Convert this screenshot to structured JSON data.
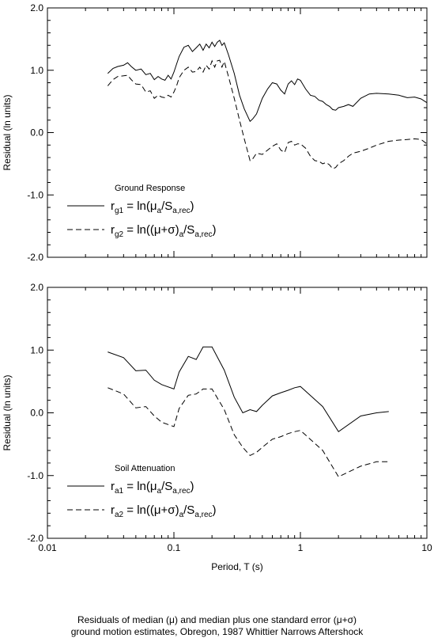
{
  "chart_data": [
    {
      "type": "line",
      "xscale": "log",
      "xlim": [
        0.01,
        10
      ],
      "ylim": [
        -2.0,
        2.0
      ],
      "ylabel": "Residual (ln units)",
      "xlabel": "",
      "x_ticks": [
        0.01,
        0.1,
        1,
        10
      ],
      "x_tick_labels": [
        "",
        "",
        "",
        ""
      ],
      "y_ticks": [
        2.0,
        1.0,
        0.0,
        -1.0,
        -2.0
      ],
      "y_tick_labels": [
        "2.0",
        "1.0",
        "0.0",
        "-1.0",
        "-2.0"
      ],
      "grid": false,
      "legend": {
        "placement": "bottom-left",
        "title": "Ground Response",
        "entries": [
          {
            "main": "r",
            "sub": "g1",
            "mid": " = ln(",
            "greek": "μ",
            "sub2": "a",
            "post": "/S",
            "sub3": "a,rec",
            "end": ")",
            "dash": "solid"
          },
          {
            "main": "r",
            "sub": "g2",
            "mid": " = ln((",
            "greek": "μ+σ",
            "sub2": ")a",
            "post": "/S",
            "sub3": "a,rec",
            "end": ")",
            "dash": "dashed"
          }
        ]
      },
      "series": [
        {
          "dash": "solid",
          "x": [
            0.03,
            0.033,
            0.036,
            0.04,
            0.043,
            0.046,
            0.05,
            0.055,
            0.06,
            0.065,
            0.07,
            0.075,
            0.08,
            0.085,
            0.09,
            0.095,
            0.1,
            0.105,
            0.11,
            0.12,
            0.13,
            0.14,
            0.15,
            0.16,
            0.17,
            0.18,
            0.19,
            0.2,
            0.21,
            0.22,
            0.23,
            0.24,
            0.25,
            0.27,
            0.3,
            0.33,
            0.36,
            0.4,
            0.42,
            0.45,
            0.5,
            0.55,
            0.6,
            0.65,
            0.7,
            0.75,
            0.8,
            0.85,
            0.9,
            0.95,
            1.0,
            1.1,
            1.2,
            1.3,
            1.4,
            1.5,
            1.6,
            1.7,
            1.8,
            1.9,
            2.0,
            2.2,
            2.4,
            2.6,
            3.0,
            3.5,
            4.0,
            5.0,
            6.0,
            7.0,
            8.0,
            9.0,
            10.0
          ],
          "y": [
            0.95,
            1.03,
            1.06,
            1.08,
            1.12,
            1.06,
            1.0,
            1.02,
            0.93,
            0.95,
            0.85,
            0.9,
            0.86,
            0.84,
            0.92,
            0.86,
            0.97,
            1.1,
            1.22,
            1.37,
            1.4,
            1.3,
            1.36,
            1.42,
            1.32,
            1.42,
            1.36,
            1.45,
            1.38,
            1.45,
            1.48,
            1.4,
            1.44,
            1.25,
            0.95,
            0.6,
            0.38,
            0.18,
            0.22,
            0.3,
            0.55,
            0.7,
            0.8,
            0.78,
            0.68,
            0.62,
            0.78,
            0.83,
            0.77,
            0.86,
            0.84,
            0.7,
            0.6,
            0.58,
            0.52,
            0.5,
            0.45,
            0.42,
            0.37,
            0.36,
            0.4,
            0.42,
            0.45,
            0.42,
            0.55,
            0.62,
            0.63,
            0.62,
            0.6,
            0.56,
            0.57,
            0.54,
            0.48
          ]
        },
        {
          "dash": "dashed",
          "x": [
            0.03,
            0.033,
            0.036,
            0.04,
            0.043,
            0.046,
            0.05,
            0.055,
            0.06,
            0.065,
            0.07,
            0.075,
            0.08,
            0.085,
            0.09,
            0.095,
            0.1,
            0.105,
            0.11,
            0.12,
            0.13,
            0.14,
            0.15,
            0.16,
            0.17,
            0.18,
            0.19,
            0.2,
            0.21,
            0.22,
            0.23,
            0.24,
            0.25,
            0.27,
            0.3,
            0.33,
            0.36,
            0.4,
            0.42,
            0.45,
            0.5,
            0.55,
            0.6,
            0.65,
            0.7,
            0.75,
            0.8,
            0.85,
            0.9,
            0.95,
            1.0,
            1.1,
            1.2,
            1.3,
            1.4,
            1.5,
            1.6,
            1.7,
            1.8,
            1.9,
            2.0,
            2.2,
            2.4,
            2.6,
            3.0,
            3.5,
            4.0,
            5.0,
            6.0,
            7.0,
            8.0,
            9.0,
            10.0
          ],
          "y": [
            0.75,
            0.85,
            0.9,
            0.91,
            0.92,
            0.85,
            0.78,
            0.77,
            0.65,
            0.67,
            0.55,
            0.6,
            0.57,
            0.56,
            0.6,
            0.57,
            0.65,
            0.75,
            0.88,
            1.0,
            1.05,
            0.97,
            0.98,
            1.05,
            0.97,
            1.08,
            1.02,
            1.15,
            1.05,
            1.15,
            1.16,
            1.05,
            1.14,
            0.9,
            0.55,
            0.2,
            -0.1,
            -0.45,
            -0.42,
            -0.33,
            -0.35,
            -0.28,
            -0.22,
            -0.18,
            -0.28,
            -0.32,
            -0.16,
            -0.14,
            -0.2,
            -0.18,
            -0.18,
            -0.25,
            -0.38,
            -0.45,
            -0.46,
            -0.5,
            -0.48,
            -0.52,
            -0.58,
            -0.56,
            -0.5,
            -0.45,
            -0.38,
            -0.33,
            -0.3,
            -0.25,
            -0.2,
            -0.14,
            -0.12,
            -0.11,
            -0.1,
            -0.11,
            -0.18
          ]
        }
      ]
    },
    {
      "type": "line",
      "xscale": "log",
      "xlim": [
        0.01,
        10
      ],
      "ylim": [
        -2.0,
        2.0
      ],
      "ylabel": "Residual (ln units)",
      "xlabel": "Period, T (s)",
      "x_ticks": [
        0.01,
        0.1,
        1,
        10
      ],
      "x_tick_labels": [
        "0.01",
        "0.1",
        "1",
        "10"
      ],
      "y_ticks": [
        2.0,
        1.0,
        0.0,
        -1.0,
        -2.0
      ],
      "y_tick_labels": [
        "2.0",
        "1.0",
        "0.0",
        "-1.0",
        "-2.0"
      ],
      "grid": false,
      "legend": {
        "placement": "bottom-left",
        "title": "Soil Attenuation",
        "entries": [
          {
            "main": "r",
            "sub": "a1",
            "mid": " = ln(",
            "greek": "μ",
            "sub2": "a",
            "post": "/S",
            "sub3": "a,rec",
            "end": ")",
            "dash": "solid"
          },
          {
            "main": "r",
            "sub": "a2",
            "mid": " = ln((",
            "greek": "μ+σ",
            "sub2": ")a",
            "post": "/S",
            "sub3": "a,rec",
            "end": ")",
            "dash": "dashed"
          }
        ]
      },
      "series": [
        {
          "dash": "solid",
          "x": [
            0.03,
            0.04,
            0.05,
            0.06,
            0.07,
            0.08,
            0.1,
            0.11,
            0.13,
            0.15,
            0.17,
            0.2,
            0.25,
            0.3,
            0.35,
            0.4,
            0.45,
            0.5,
            0.6,
            0.7,
            0.8,
            0.9,
            1.0,
            1.5,
            2.0,
            3.0,
            4.0,
            5.0
          ],
          "y": [
            0.97,
            0.88,
            0.67,
            0.68,
            0.52,
            0.45,
            0.38,
            0.65,
            0.9,
            0.85,
            1.05,
            1.05,
            0.68,
            0.25,
            0.0,
            0.05,
            0.02,
            0.12,
            0.27,
            0.32,
            0.36,
            0.4,
            0.42,
            0.1,
            -0.3,
            -0.05,
            0.0,
            0.02
          ]
        },
        {
          "dash": "dashed",
          "x": [
            0.03,
            0.04,
            0.05,
            0.06,
            0.07,
            0.08,
            0.1,
            0.11,
            0.13,
            0.15,
            0.17,
            0.2,
            0.25,
            0.3,
            0.35,
            0.4,
            0.45,
            0.5,
            0.6,
            0.7,
            0.8,
            0.9,
            1.0,
            1.5,
            2.0,
            3.0,
            4.0,
            5.0
          ],
          "y": [
            0.4,
            0.3,
            0.08,
            0.1,
            -0.05,
            -0.15,
            -0.22,
            0.07,
            0.28,
            0.3,
            0.38,
            0.38,
            0.05,
            -0.35,
            -0.55,
            -0.68,
            -0.63,
            -0.55,
            -0.42,
            -0.38,
            -0.33,
            -0.3,
            -0.28,
            -0.6,
            -1.02,
            -0.85,
            -0.78,
            -0.78
          ]
        }
      ]
    }
  ],
  "caption": {
    "line1_a": "Residuals of median (",
    "line1_mu": "μ",
    "line1_b": ") and median plus one standard error (",
    "line1_musig": "μ+σ",
    "line1_c": ")",
    "line2": "ground motion estimates, Obregon, 1987 Whittier Narrows Aftershock"
  }
}
